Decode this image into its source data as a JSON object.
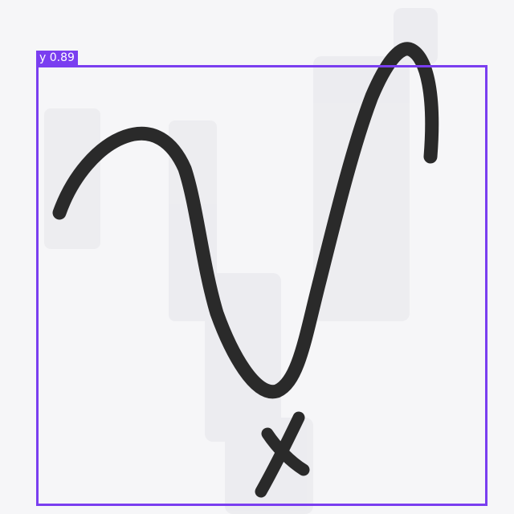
{
  "detection": {
    "label": "y 0.89",
    "color": "#7a3ef0"
  },
  "sketch": {
    "stroke_color": "#2a2a2a",
    "depicts": [
      "y",
      "x"
    ]
  }
}
